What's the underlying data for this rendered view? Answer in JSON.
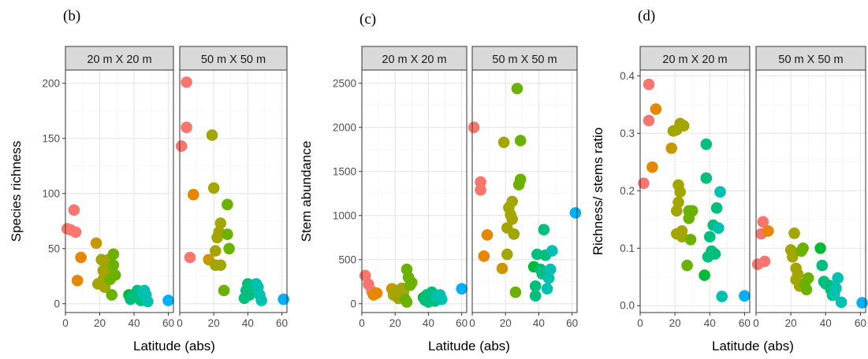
{
  "chart_data": [
    {
      "type": "scatter",
      "panel_label": "(b)",
      "ylabel": "Species richness",
      "xlabel": "Latitude (abs)",
      "xlim": [
        0,
        63
      ],
      "ylim": [
        -8,
        212
      ],
      "xticks": [
        0,
        20,
        40,
        60
      ],
      "yticks": [
        0,
        50,
        100,
        150,
        200
      ],
      "facets": [
        {
          "label": "20 m X 20 m",
          "points": [
            [
              1,
              68
            ],
            [
              3,
              67
            ],
            [
              5,
              85
            ],
            [
              6,
              65
            ],
            [
              7,
              21
            ],
            [
              9,
              42
            ],
            [
              18,
              55
            ],
            [
              19,
              18
            ],
            [
              21,
              40
            ],
            [
              22,
              22
            ],
            [
              22,
              30
            ],
            [
              23,
              38
            ],
            [
              23,
              15
            ],
            [
              24,
              28
            ],
            [
              24,
              35
            ],
            [
              25,
              40
            ],
            [
              26,
              22
            ],
            [
              27,
              8
            ],
            [
              28,
              45
            ],
            [
              28,
              35
            ],
            [
              29,
              26
            ],
            [
              37,
              8
            ],
            [
              38,
              4
            ],
            [
              40,
              8
            ],
            [
              42,
              12
            ],
            [
              43,
              5
            ],
            [
              44,
              3
            ],
            [
              45,
              10
            ],
            [
              46,
              12
            ],
            [
              47,
              8
            ],
            [
              48,
              2
            ],
            [
              60,
              3
            ]
          ]
        },
        {
          "label": "50 m X 50 m",
          "points": [
            [
              1,
              143
            ],
            [
              4,
              201
            ],
            [
              4,
              160
            ],
            [
              6,
              42
            ],
            [
              8,
              99
            ],
            [
              17,
              40
            ],
            [
              19,
              153
            ],
            [
              20,
              105
            ],
            [
              21,
              48
            ],
            [
              21,
              35
            ],
            [
              22,
              60
            ],
            [
              23,
              65
            ],
            [
              24,
              73
            ],
            [
              24,
              35
            ],
            [
              26,
              12
            ],
            [
              28,
              90
            ],
            [
              28,
              63
            ],
            [
              29,
              50
            ],
            [
              38,
              5
            ],
            [
              39,
              12
            ],
            [
              40,
              18
            ],
            [
              41,
              8
            ],
            [
              43,
              17
            ],
            [
              45,
              18
            ],
            [
              46,
              15
            ],
            [
              47,
              8
            ],
            [
              48,
              3
            ],
            [
              61,
              4
            ]
          ]
        }
      ]
    },
    {
      "type": "scatter",
      "panel_label": "(c)",
      "ylabel": "Stem abundance",
      "xlabel": "Latitude (abs)",
      "xlim": [
        0,
        63
      ],
      "ylim": [
        -100,
        2650
      ],
      "xticks": [
        0,
        20,
        40,
        60
      ],
      "yticks": [
        0,
        500,
        1000,
        1500,
        2000,
        2500
      ],
      "facets": [
        {
          "label": "20 m X 20 m",
          "points": [
            [
              2,
              320
            ],
            [
              4,
              220
            ],
            [
              6,
              140
            ],
            [
              7,
              100
            ],
            [
              9,
              120
            ],
            [
              18,
              170
            ],
            [
              19,
              100
            ],
            [
              21,
              150
            ],
            [
              22,
              60
            ],
            [
              23,
              90
            ],
            [
              24,
              175
            ],
            [
              25,
              130
            ],
            [
              26,
              50
            ],
            [
              27,
              20
            ],
            [
              27,
              390
            ],
            [
              28,
              300
            ],
            [
              29,
              210
            ],
            [
              30,
              240
            ],
            [
              37,
              70
            ],
            [
              38,
              40
            ],
            [
              39,
              100
            ],
            [
              40,
              20
            ],
            [
              42,
              130
            ],
            [
              43,
              60
            ],
            [
              44,
              30
            ],
            [
              45,
              80
            ],
            [
              47,
              100
            ],
            [
              48,
              50
            ],
            [
              60,
              170
            ]
          ]
        },
        {
          "label": "50 m X 50 m",
          "points": [
            [
              1,
              2000
            ],
            [
              5,
              1380
            ],
            [
              5,
              1290
            ],
            [
              7,
              540
            ],
            [
              9,
              780
            ],
            [
              18,
              400
            ],
            [
              19,
              1830
            ],
            [
              21,
              860
            ],
            [
              21,
              560
            ],
            [
              22,
              1090
            ],
            [
              23,
              1010
            ],
            [
              24,
              960
            ],
            [
              24,
              1160
            ],
            [
              25,
              790
            ],
            [
              26,
              130
            ],
            [
              27,
              2440
            ],
            [
              28,
              1350
            ],
            [
              29,
              1850
            ],
            [
              29,
              1410
            ],
            [
              37,
              420
            ],
            [
              38,
              200
            ],
            [
              38,
              90
            ],
            [
              39,
              560
            ],
            [
              41,
              390
            ],
            [
              42,
              340
            ],
            [
              43,
              840
            ],
            [
              44,
              550
            ],
            [
              45,
              170
            ],
            [
              46,
              290
            ],
            [
              47,
              390
            ],
            [
              48,
              600
            ],
            [
              62,
              1030
            ]
          ]
        }
      ]
    },
    {
      "type": "scatter",
      "panel_label": "(d)",
      "ylabel": "Richness/ stems ratio",
      "xlabel": "Latitude (abs)",
      "xlim": [
        0,
        63
      ],
      "ylim": [
        -0.012,
        0.41
      ],
      "xticks": [
        0,
        20,
        40,
        60
      ],
      "yticks": [
        0.0,
        0.1,
        0.2,
        0.3,
        0.4
      ],
      "facets": [
        {
          "label": "20 m X 20 m",
          "points": [
            [
              2,
              0.213
            ],
            [
              5,
              0.385
            ],
            [
              5,
              0.322
            ],
            [
              7,
              0.241
            ],
            [
              9,
              0.342
            ],
            [
              18,
              0.274
            ],
            [
              19,
              0.304
            ],
            [
              21,
              0.306
            ],
            [
              21,
              0.165
            ],
            [
              21,
              0.125
            ],
            [
              22,
              0.18
            ],
            [
              22,
              0.21
            ],
            [
              23,
              0.317
            ],
            [
              23,
              0.198
            ],
            [
              24,
              0.12
            ],
            [
              24,
              0.13
            ],
            [
              25,
              0.313
            ],
            [
              27,
              0.07
            ],
            [
              28,
              0.165
            ],
            [
              28,
              0.152
            ],
            [
              29,
              0.115
            ],
            [
              30,
              0.165
            ],
            [
              37,
              0.053
            ],
            [
              38,
              0.281
            ],
            [
              38,
              0.222
            ],
            [
              39,
              0.085
            ],
            [
              40,
              0.12
            ],
            [
              41,
              0.095
            ],
            [
              42,
              0.14
            ],
            [
              43,
              0.09
            ],
            [
              44,
              0.17
            ],
            [
              45,
              0.135
            ],
            [
              46,
              0.198
            ],
            [
              47,
              0.016
            ],
            [
              60,
              0.017
            ]
          ]
        },
        {
          "label": "50 m X 50 m",
          "points": [
            [
              1,
              0.072
            ],
            [
              3,
              0.125
            ],
            [
              4,
              0.146
            ],
            [
              5,
              0.077
            ],
            [
              7,
              0.13
            ],
            [
              20,
              0.097
            ],
            [
              21,
              0.085
            ],
            [
              22,
              0.126
            ],
            [
              23,
              0.065
            ],
            [
              23,
              0.045
            ],
            [
              24,
              0.055
            ],
            [
              25,
              0.034
            ],
            [
              26,
              0.095
            ],
            [
              27,
              0.1
            ],
            [
              28,
              0.038
            ],
            [
              29,
              0.028
            ],
            [
              30,
              0.048
            ],
            [
              37,
              0.1
            ],
            [
              38,
              0.07
            ],
            [
              39,
              0.042
            ],
            [
              40,
              0.038
            ],
            [
              42,
              0.035
            ],
            [
              43,
              0.028
            ],
            [
              44,
              0.018
            ],
            [
              45,
              0.02
            ],
            [
              46,
              0.03
            ],
            [
              47,
              0.048
            ],
            [
              49,
              0.006
            ],
            [
              61,
              0.005
            ]
          ]
        }
      ]
    }
  ],
  "palette": [
    "#f8766d",
    "#e58700",
    "#c99800",
    "#a3a500",
    "#6bb100",
    "#00ba38",
    "#00bf7d",
    "#00c0af",
    "#00bcd8",
    "#00b0f6"
  ]
}
